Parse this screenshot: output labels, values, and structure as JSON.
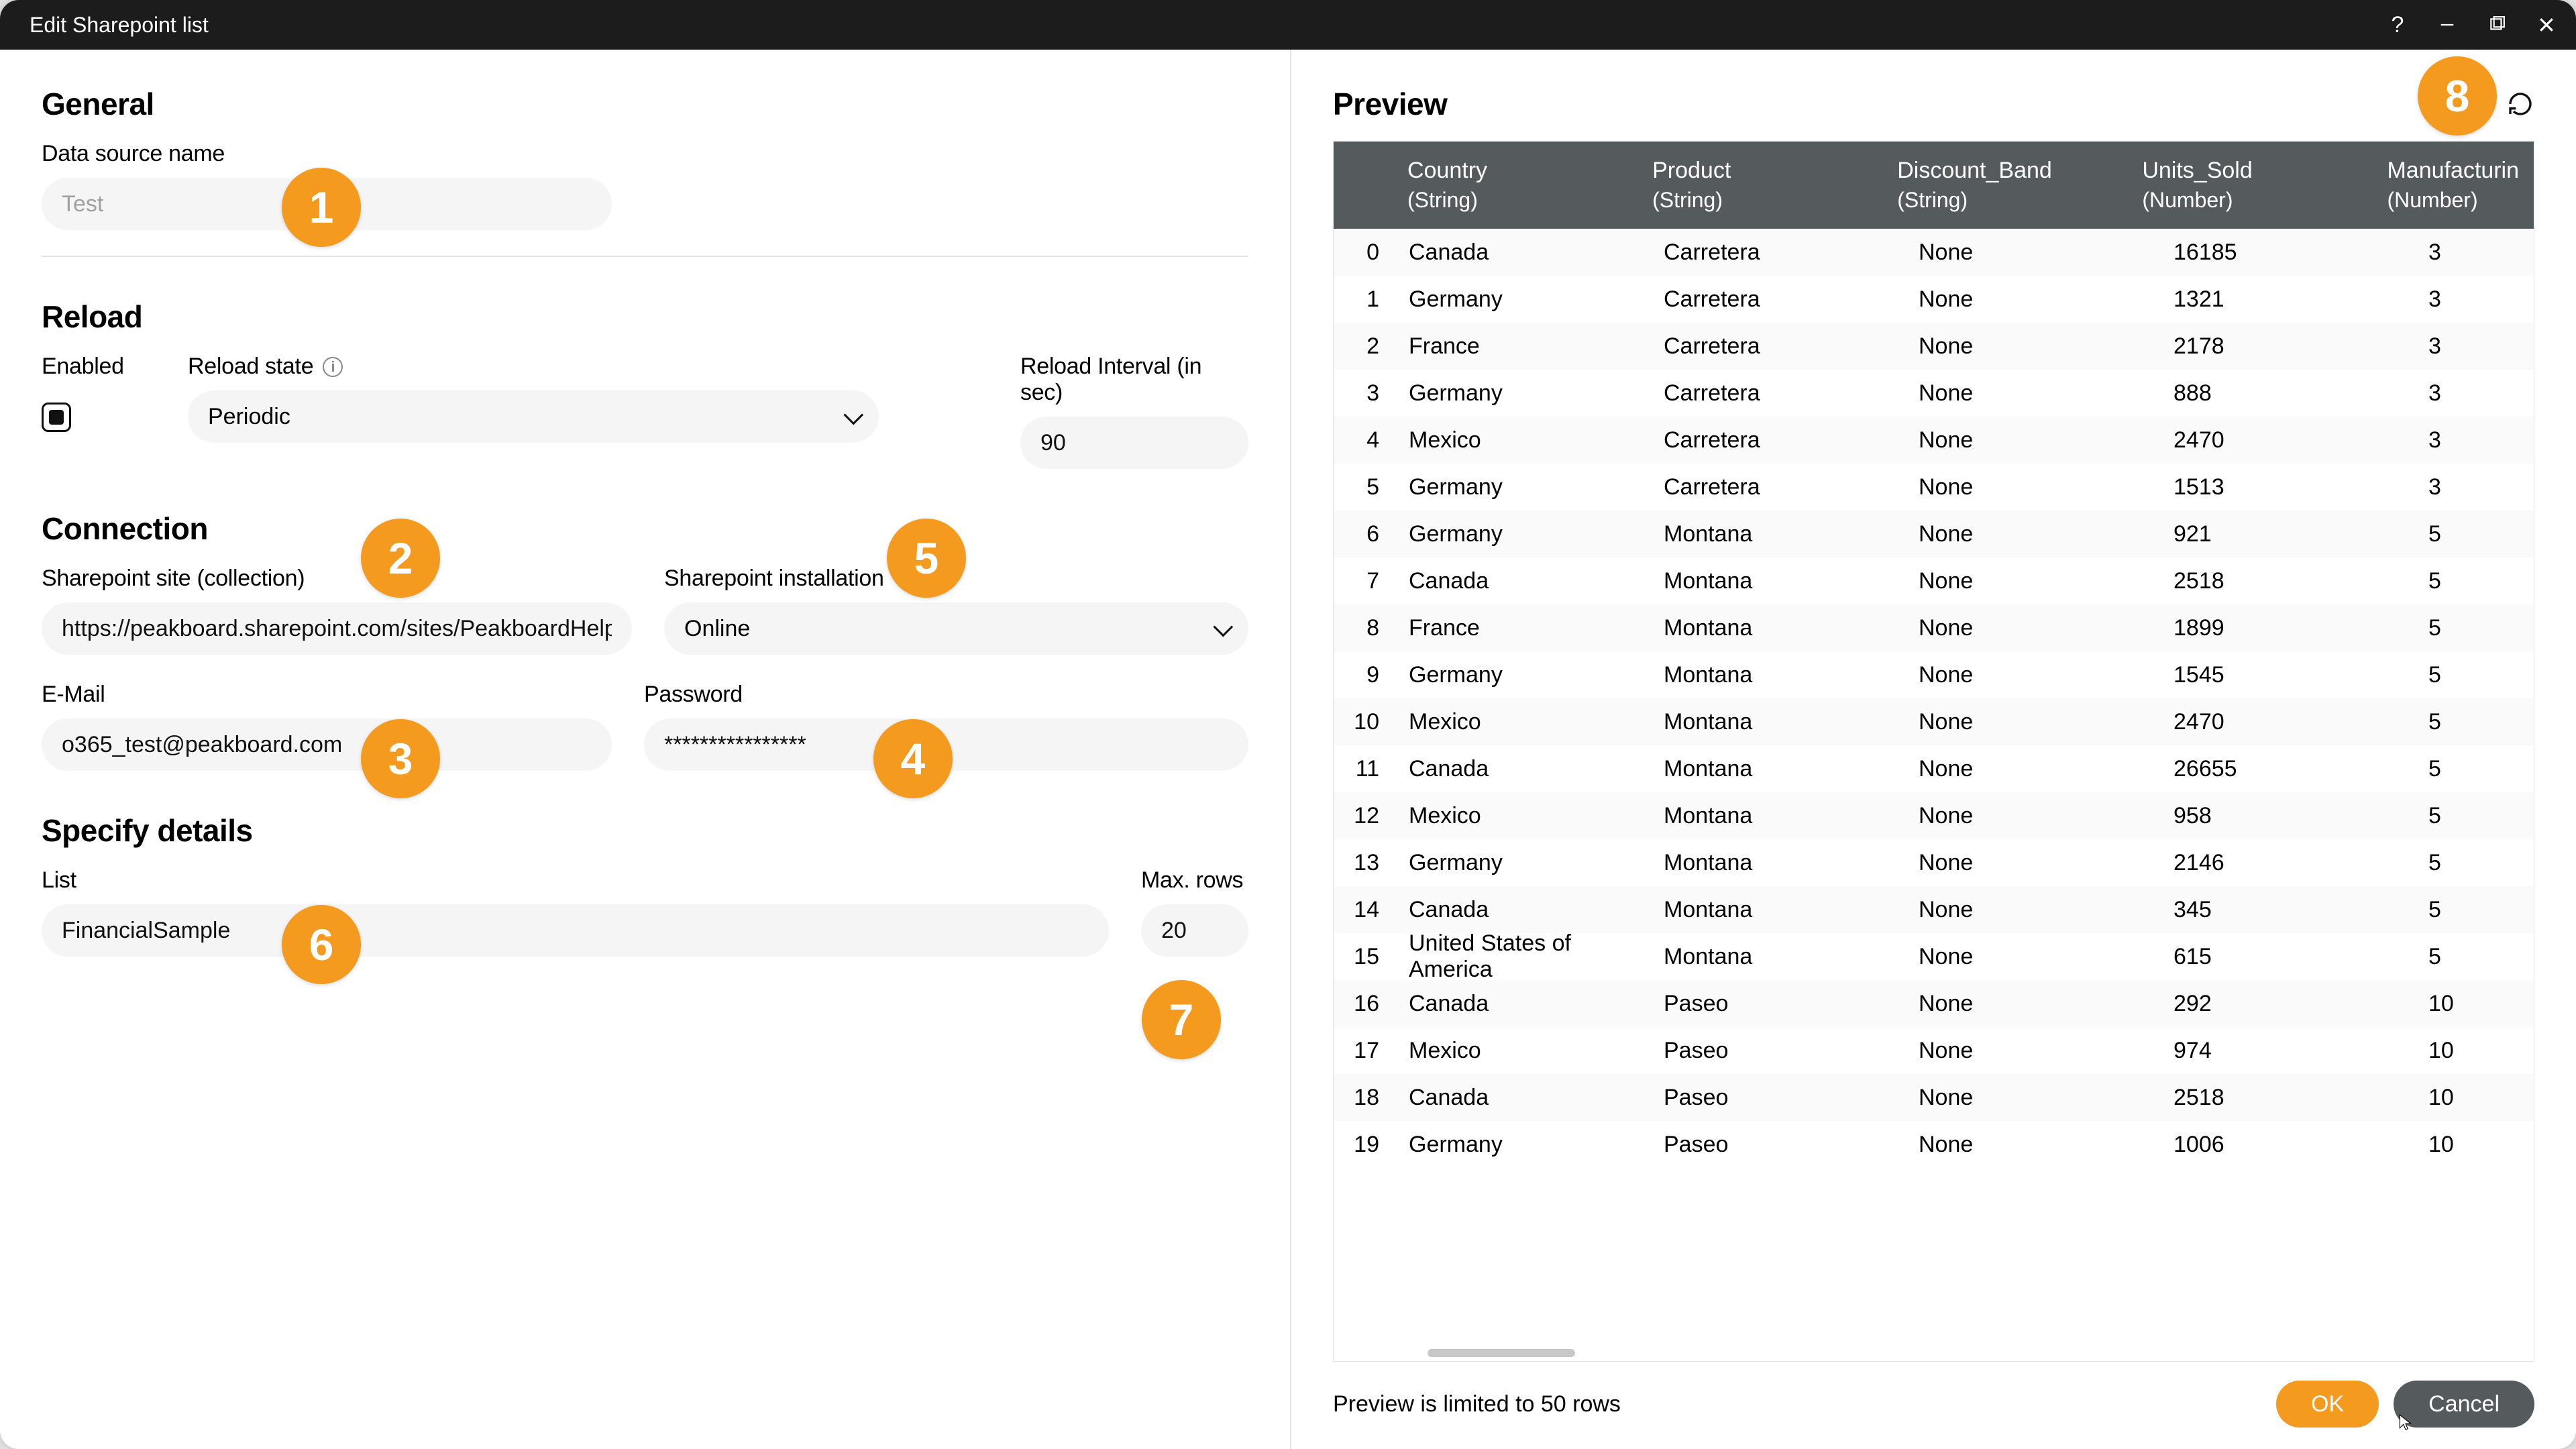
{
  "window": {
    "title": "Edit Sharepoint list"
  },
  "badges": [
    "1",
    "2",
    "3",
    "4",
    "5",
    "6",
    "7",
    "8"
  ],
  "general": {
    "heading": "General",
    "data_source_name_label": "Data source name",
    "data_source_name_placeholder": "Test"
  },
  "reload": {
    "heading": "Reload",
    "enabled_label": "Enabled",
    "reload_state_label": "Reload state",
    "reload_state_value": "Periodic",
    "interval_label": "Reload Interval (in sec)",
    "interval_value": "90"
  },
  "connection": {
    "heading": "Connection",
    "site_label": "Sharepoint site (collection)",
    "site_value": "https://peakboard.sharepoint.com/sites/PeakboardHelpTe",
    "install_label": "Sharepoint installation",
    "install_value": "Online",
    "email_label": "E-Mail",
    "email_value": "o365_test@peakboard.com",
    "password_label": "Password",
    "password_value": "****************"
  },
  "details": {
    "heading": "Specify details",
    "list_label": "List",
    "list_value": "FinancialSample",
    "max_rows_label": "Max. rows",
    "max_rows_value": "20"
  },
  "preview": {
    "heading": "Preview",
    "limit_note": "Preview is limited to 50 rows",
    "columns": [
      {
        "name": "Country",
        "type": "(String)"
      },
      {
        "name": "Product",
        "type": "(String)"
      },
      {
        "name": "Discount_Band",
        "type": "(String)"
      },
      {
        "name": "Units_Sold",
        "type": "(Number)"
      },
      {
        "name": "Manufacturin",
        "type": "(Number)"
      }
    ],
    "rows": [
      [
        "0",
        "Canada",
        "Carretera",
        "None",
        "16185",
        "3"
      ],
      [
        "1",
        "Germany",
        "Carretera",
        "None",
        "1321",
        "3"
      ],
      [
        "2",
        "France",
        "Carretera",
        "None",
        "2178",
        "3"
      ],
      [
        "3",
        "Germany",
        "Carretera",
        "None",
        "888",
        "3"
      ],
      [
        "4",
        "Mexico",
        "Carretera",
        "None",
        "2470",
        "3"
      ],
      [
        "5",
        "Germany",
        "Carretera",
        "None",
        "1513",
        "3"
      ],
      [
        "6",
        "Germany",
        "Montana",
        "None",
        "921",
        "5"
      ],
      [
        "7",
        "Canada",
        "Montana",
        "None",
        "2518",
        "5"
      ],
      [
        "8",
        "France",
        "Montana",
        "None",
        "1899",
        "5"
      ],
      [
        "9",
        "Germany",
        "Montana",
        "None",
        "1545",
        "5"
      ],
      [
        "10",
        "Mexico",
        "Montana",
        "None",
        "2470",
        "5"
      ],
      [
        "11",
        "Canada",
        "Montana",
        "None",
        "26655",
        "5"
      ],
      [
        "12",
        "Mexico",
        "Montana",
        "None",
        "958",
        "5"
      ],
      [
        "13",
        "Germany",
        "Montana",
        "None",
        "2146",
        "5"
      ],
      [
        "14",
        "Canada",
        "Montana",
        "None",
        "345",
        "5"
      ],
      [
        "15",
        "United States of America",
        "Montana",
        "None",
        "615",
        "5"
      ],
      [
        "16",
        "Canada",
        "Paseo",
        "None",
        "292",
        "10"
      ],
      [
        "17",
        "Mexico",
        "Paseo",
        "None",
        "974",
        "10"
      ],
      [
        "18",
        "Canada",
        "Paseo",
        "None",
        "2518",
        "10"
      ],
      [
        "19",
        "Germany",
        "Paseo",
        "None",
        "1006",
        "10"
      ]
    ]
  },
  "buttons": {
    "ok": "OK",
    "cancel": "Cancel"
  },
  "colors": {
    "accent": "#f39a1f",
    "titlebar_bg": "#1c1c1c",
    "table_header_bg": "#555a5c",
    "input_bg": "#f5f5f5"
  }
}
